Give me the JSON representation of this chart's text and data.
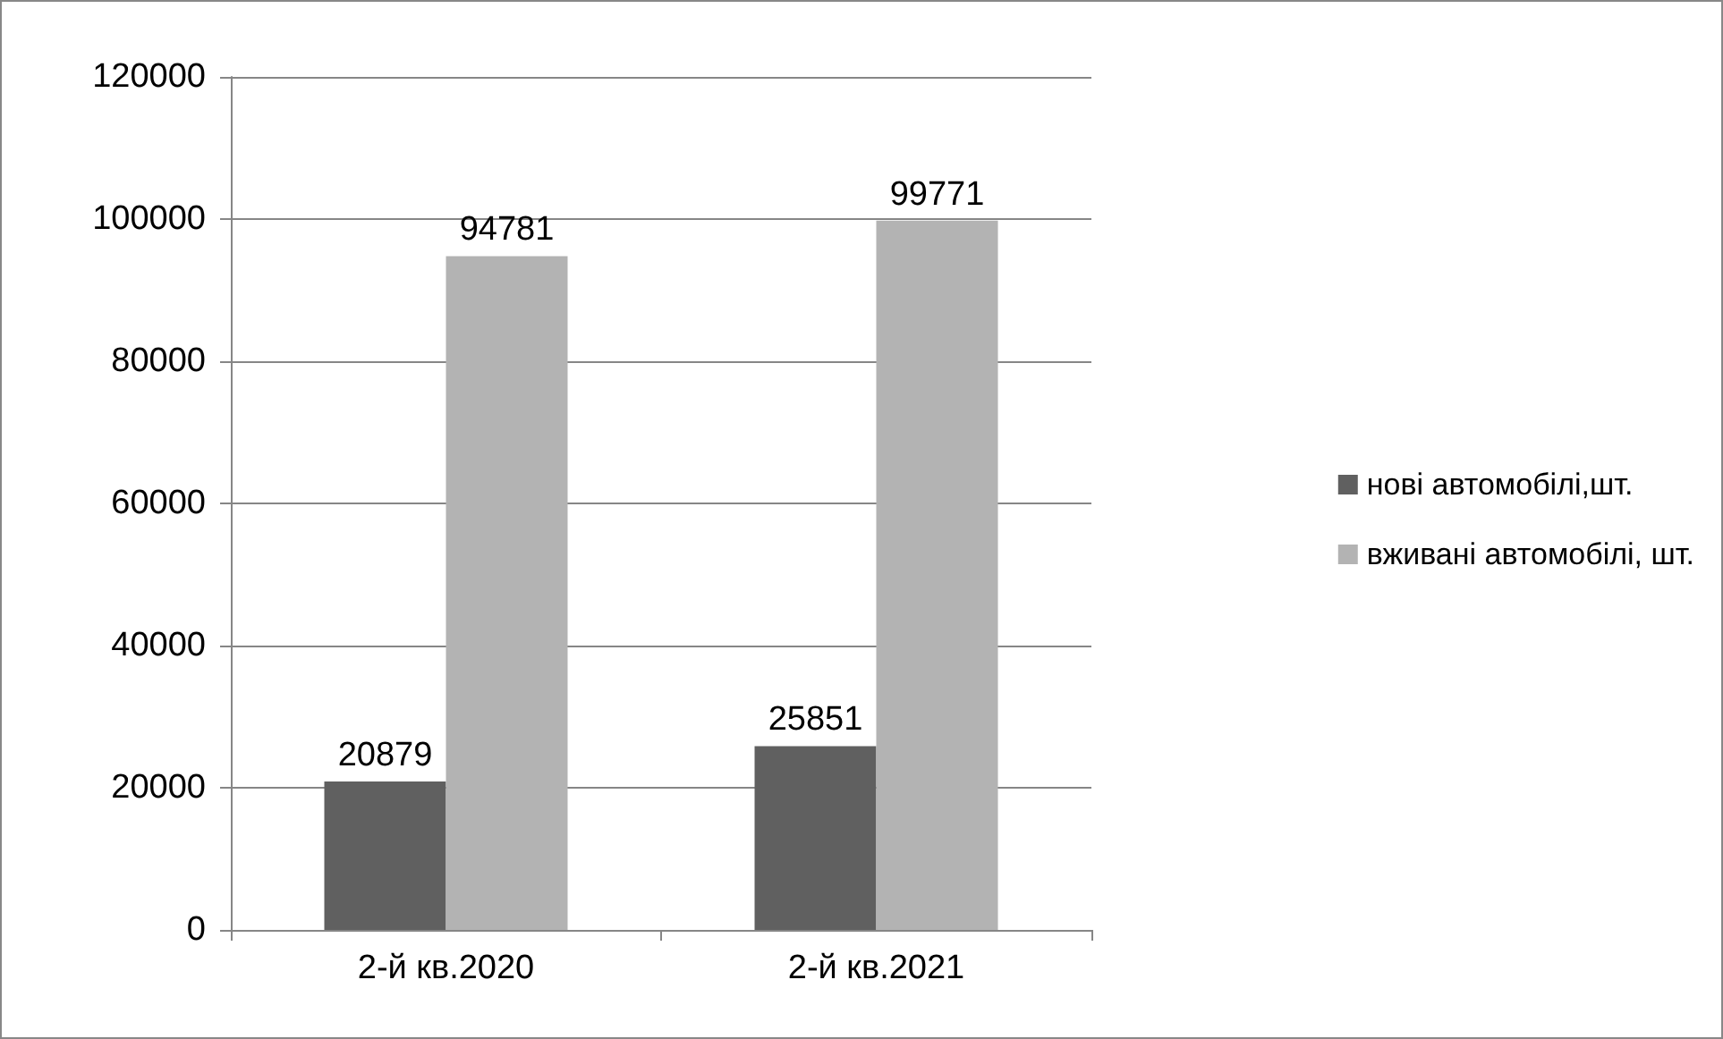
{
  "chart_data": {
    "type": "bar",
    "categories": [
      "2-й кв.2020",
      "2-й кв.2021"
    ],
    "series": [
      {
        "name": "нові автомобілі,шт.",
        "color": "#606060",
        "values": [
          20879,
          25851
        ]
      },
      {
        "name": "вживані автомобілі, шт.",
        "color": "#b3b3b3",
        "values": [
          94781,
          99771
        ]
      }
    ],
    "ylim": [
      0,
      120000
    ],
    "yticks": [
      0,
      20000,
      40000,
      60000,
      80000,
      100000,
      120000
    ],
    "grid": "y",
    "legend": "right",
    "data_labels": true
  }
}
